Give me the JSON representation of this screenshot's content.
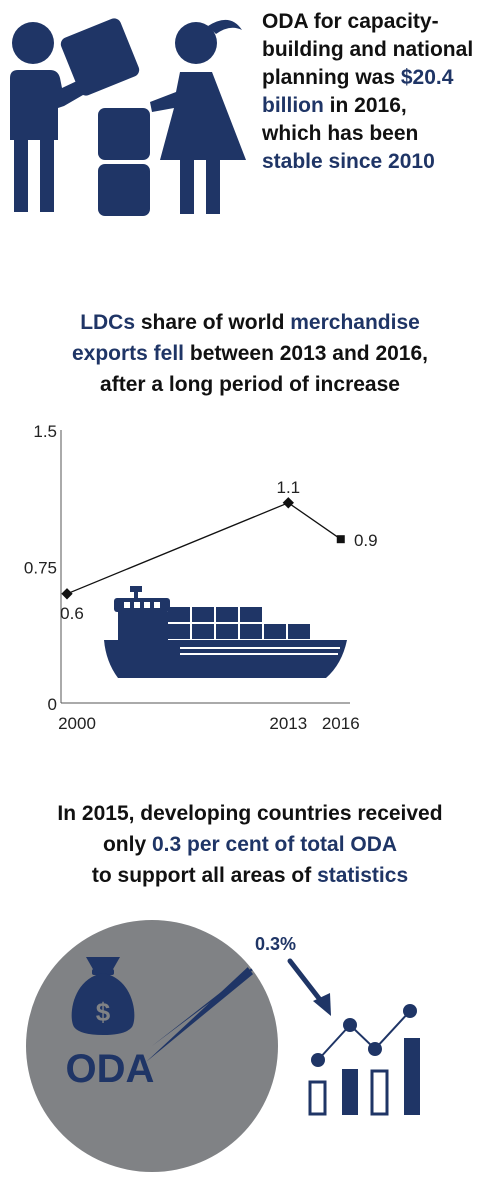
{
  "colors": {
    "navy": "#1f3566",
    "grey": "#808285",
    "dark": "#111111"
  },
  "section1": {
    "line1": "ODA for capacity-",
    "line2": "building and national",
    "line3": "planning was",
    "amount": "$20.4",
    "line4_hl": "billion",
    "line4_rest": "in 2016,",
    "line5": "which has been",
    "line6_hl": "stable since 2010"
  },
  "section2": {
    "title_hl1": "LDCs",
    "title_mid": "share of world",
    "title_hl2": "merchandise",
    "title_hl3": "exports fell",
    "title_rest": "between 2013 and 2016,",
    "title_line3": "after a long period of increase"
  },
  "chart_data": {
    "type": "line",
    "x": [
      2000,
      2013,
      2016
    ],
    "values": [
      0.6,
      1.1,
      0.9
    ],
    "data_labels": [
      "0.6",
      "1.1",
      "0.9"
    ],
    "x_tick_labels": [
      "2000",
      "2013",
      "2016"
    ],
    "y_ticks": [
      0,
      0.75,
      1.5
    ],
    "y_tick_labels": [
      "0",
      "0.75",
      "1.5"
    ],
    "ylim": [
      0,
      1.5
    ],
    "xlim": [
      2000,
      2017.5
    ],
    "grid": false
  },
  "section3": {
    "line1": "In 2015, developing countries received",
    "line2_pre": "only",
    "line2_hl": "0.3 per cent of total ODA",
    "line3_pre": "to support all areas of",
    "line3_hl": "statistics",
    "pie_pct_label": "0.3%",
    "pie_share_percent": 0.3,
    "bag_symbol": "$",
    "oda_label": "ODA"
  }
}
